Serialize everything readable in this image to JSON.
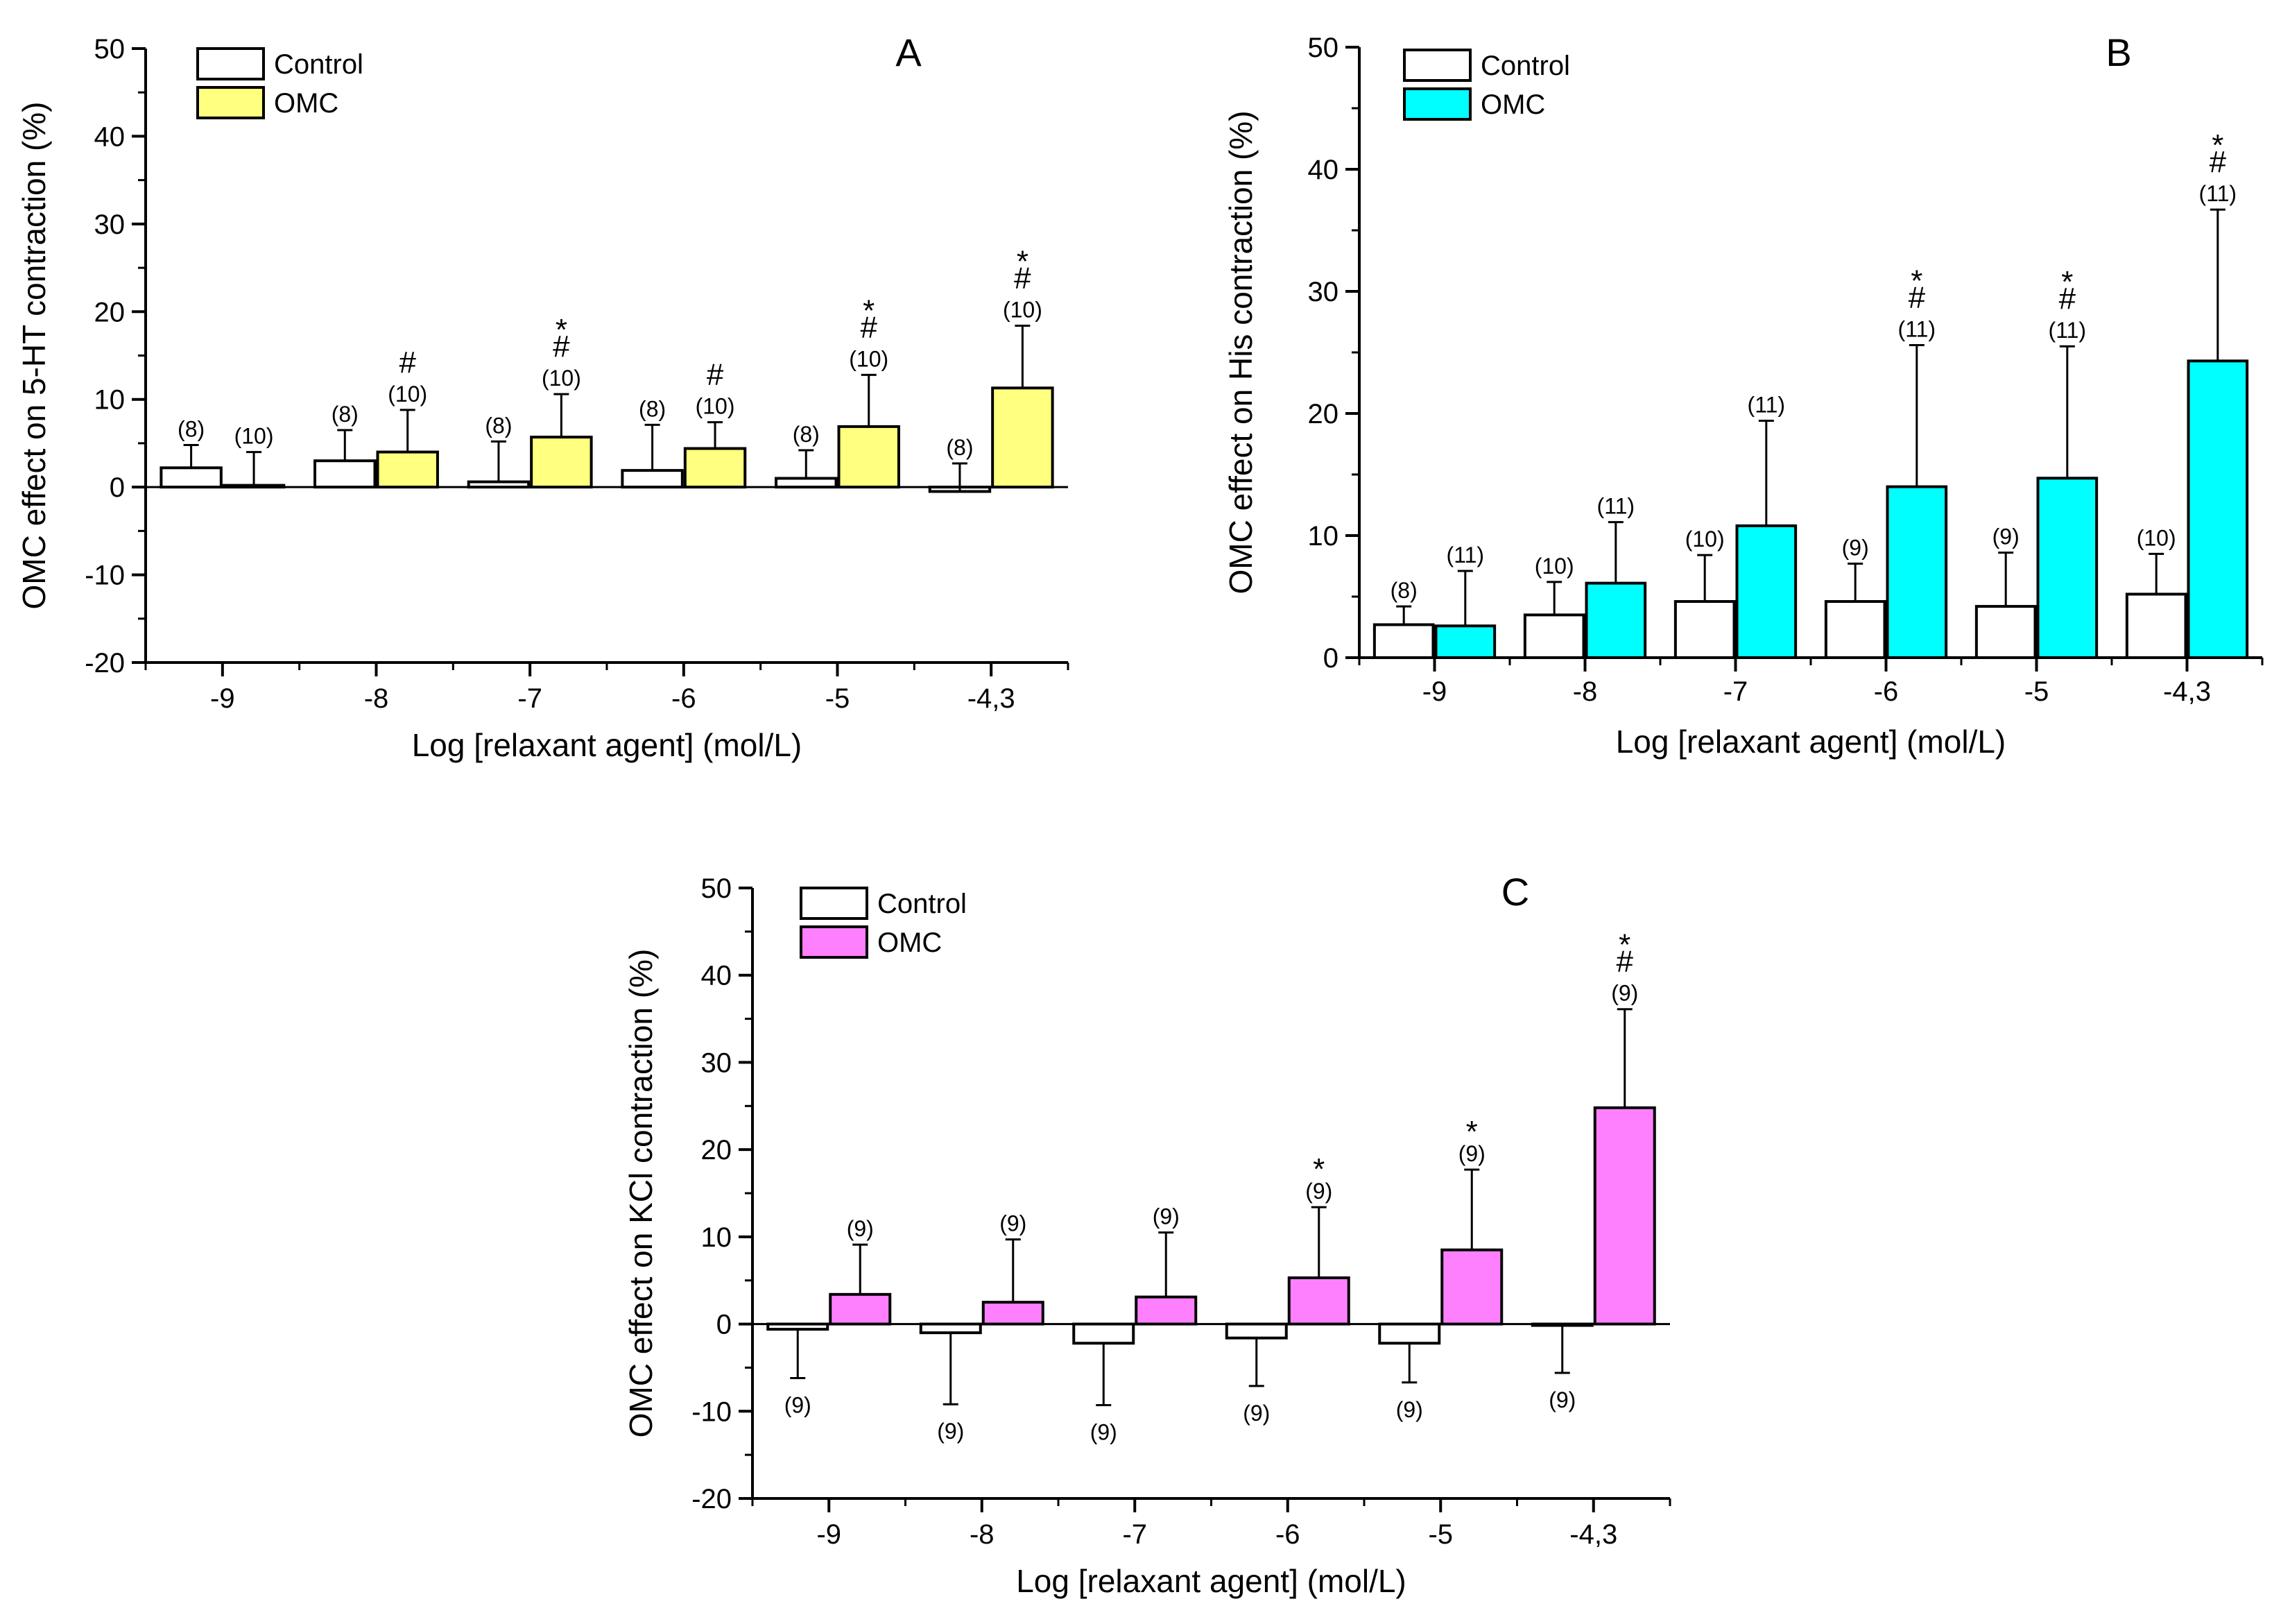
{
  "chart_data": [
    {
      "type": "bar",
      "panel": "A",
      "title": "",
      "xlabel": "Log [relaxant agent] (mol/L)",
      "ylabel": "OMC effect on 5-HT contraction (%)",
      "ylim": [
        -20,
        50
      ],
      "yticks": [
        -20,
        -10,
        0,
        10,
        20,
        30,
        40,
        50
      ],
      "categories": [
        "-9",
        "-8",
        "-7",
        "-6",
        "-5",
        "-4,3"
      ],
      "legend": [
        "Control",
        "OMC"
      ],
      "colors": {
        "control": "#ffffff",
        "omc": "#ffff80"
      },
      "series": [
        {
          "name": "Control",
          "values": [
            2.2,
            3.0,
            0.6,
            1.9,
            1.0,
            -0.5
          ],
          "errors": [
            2.6,
            3.5,
            4.6,
            5.2,
            3.2,
            3.2
          ],
          "err_dir": [
            1,
            1,
            1,
            1,
            1,
            1
          ],
          "n_labels": [
            "(8)",
            "(8)",
            "(8)",
            "(8)",
            "(8)",
            "(8)"
          ],
          "sig": [
            "",
            "",
            "",
            "",
            "",
            ""
          ]
        },
        {
          "name": "OMC",
          "values": [
            0.2,
            4.0,
            5.7,
            4.4,
            6.9,
            11.3
          ],
          "errors": [
            3.8,
            4.8,
            4.9,
            3.0,
            5.9,
            7.1
          ],
          "err_dir": [
            1,
            1,
            1,
            1,
            1,
            1
          ],
          "n_labels": [
            "(10)",
            "(10)",
            "(10)",
            "(10)",
            "(10)",
            "(10)"
          ],
          "sig": [
            "",
            "#",
            "*#",
            "#",
            "*#",
            "*#"
          ]
        }
      ]
    },
    {
      "type": "bar",
      "panel": "B",
      "title": "",
      "xlabel": "Log [relaxant agent] (mol/L)",
      "ylabel": "OMC effect on His contraction (%)",
      "ylim": [
        0,
        50
      ],
      "yticks": [
        0,
        10,
        20,
        30,
        40,
        50
      ],
      "categories": [
        "-9",
        "-8",
        "-7",
        "-6",
        "-5",
        "-4,3"
      ],
      "legend": [
        "Control",
        "OMC"
      ],
      "colors": {
        "control": "#ffffff",
        "omc": "#00ffff"
      },
      "series": [
        {
          "name": "Control",
          "values": [
            2.7,
            3.5,
            4.6,
            4.6,
            4.2,
            5.2
          ],
          "errors": [
            1.5,
            2.7,
            3.8,
            3.1,
            4.4,
            3.3
          ],
          "err_dir": [
            1,
            1,
            1,
            1,
            1,
            1
          ],
          "n_labels": [
            "(8)",
            "(10)",
            "(10)",
            "(9)",
            "(9)",
            "(10)"
          ],
          "sig": [
            "",
            "",
            "",
            "",
            "",
            ""
          ]
        },
        {
          "name": "OMC",
          "values": [
            2.6,
            6.1,
            10.8,
            14.0,
            14.7,
            24.3
          ],
          "errors": [
            4.5,
            5.0,
            8.6,
            11.6,
            10.8,
            12.4
          ],
          "err_dir": [
            1,
            1,
            1,
            1,
            1,
            1
          ],
          "n_labels": [
            "(11)",
            "(11)",
            "(11)",
            "(11)",
            "(11)",
            "(11)"
          ],
          "sig": [
            "",
            "",
            "",
            "*#",
            "*#",
            "*#"
          ]
        }
      ]
    },
    {
      "type": "bar",
      "panel": "C",
      "title": "",
      "xlabel": "Log [relaxant agent] (mol/L)",
      "ylabel": "OMC effect on KCl contraction (%)",
      "ylim": [
        -20,
        50
      ],
      "yticks": [
        -20,
        -10,
        0,
        10,
        20,
        30,
        40,
        50
      ],
      "categories": [
        "-9",
        "-8",
        "-7",
        "-6",
        "-5",
        "-4,3"
      ],
      "legend": [
        "Control",
        "OMC"
      ],
      "colors": {
        "control": "#ffffff",
        "omc": "#ff80ff"
      },
      "series": [
        {
          "name": "Control",
          "values": [
            -0.6,
            -1.0,
            -2.2,
            -1.6,
            -2.2,
            0.0
          ],
          "errors": [
            5.6,
            8.2,
            7.1,
            5.5,
            4.5,
            5.6
          ],
          "err_dir": [
            -1,
            -1,
            -1,
            -1,
            -1,
            -1
          ],
          "n_labels": [
            "(9)",
            "(9)",
            "(9)",
            "(9)",
            "(9)",
            "(9)"
          ],
          "sig": [
            "",
            "",
            "",
            "",
            "",
            ""
          ]
        },
        {
          "name": "OMC",
          "values": [
            3.4,
            2.5,
            3.1,
            5.3,
            8.5,
            24.8
          ],
          "errors": [
            5.7,
            7.2,
            7.4,
            8.1,
            9.2,
            11.3
          ],
          "err_dir": [
            1,
            1,
            1,
            1,
            1,
            1
          ],
          "n_labels": [
            "(9)",
            "(9)",
            "(9)",
            "(9)",
            "(9)",
            "(9)"
          ],
          "sig": [
            "",
            "",
            "",
            "*",
            "*",
            "*#"
          ]
        }
      ]
    }
  ]
}
